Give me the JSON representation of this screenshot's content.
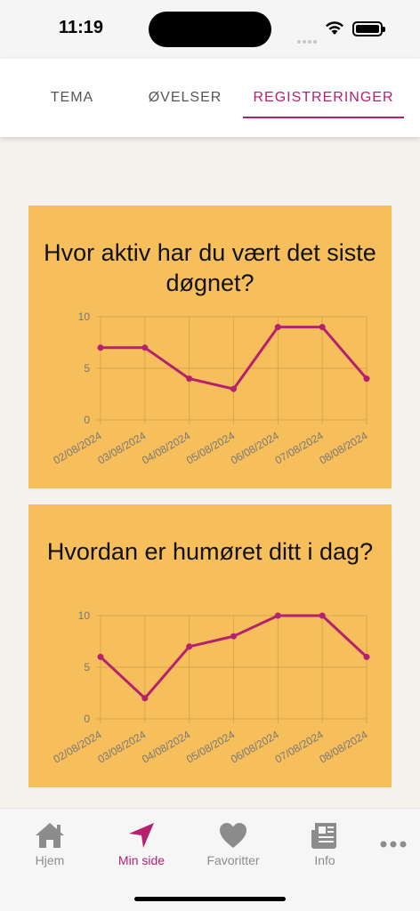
{
  "status": {
    "time": "11:19"
  },
  "tabs": [
    {
      "label": "TEMA",
      "active": false
    },
    {
      "label": "ØVELSER",
      "active": false
    },
    {
      "label": "REGISTRERINGER",
      "active": true
    }
  ],
  "accent_color": "#b5206f",
  "card_color": "#f7be5c",
  "chart_data": [
    {
      "type": "line",
      "title": "Hvor aktiv har du vært det siste døgnet?",
      "categories": [
        "02/08/2024",
        "03/08/2024",
        "04/08/2024",
        "05/08/2024",
        "06/08/2024",
        "07/08/2024",
        "08/08/2024"
      ],
      "values": [
        7,
        7,
        4,
        3,
        9,
        9,
        4
      ],
      "yticks": [
        "0",
        "5",
        "10"
      ],
      "ylim": [
        0,
        10
      ],
      "grid": true,
      "xlabel": "",
      "ylabel": ""
    },
    {
      "type": "line",
      "title": "Hvordan er humøret ditt i dag?",
      "categories": [
        "02/08/2024",
        "03/08/2024",
        "04/08/2024",
        "05/08/2024",
        "06/08/2024",
        "07/08/2024",
        "08/08/2024"
      ],
      "values": [
        6,
        2,
        7,
        8,
        10,
        10,
        6
      ],
      "yticks": [
        "0",
        "5",
        "10"
      ],
      "ylim": [
        0,
        10
      ],
      "grid": true,
      "xlabel": "",
      "ylabel": ""
    }
  ],
  "bottom_nav": [
    {
      "label": "Hjem",
      "icon": "home-icon",
      "active": false
    },
    {
      "label": "Min side",
      "icon": "navigation-arrow-icon",
      "active": true
    },
    {
      "label": "Favoritter",
      "icon": "heart-icon",
      "active": false
    },
    {
      "label": "Info",
      "icon": "newspaper-icon",
      "active": false
    },
    {
      "label": "",
      "icon": "more-icon",
      "active": false
    }
  ]
}
